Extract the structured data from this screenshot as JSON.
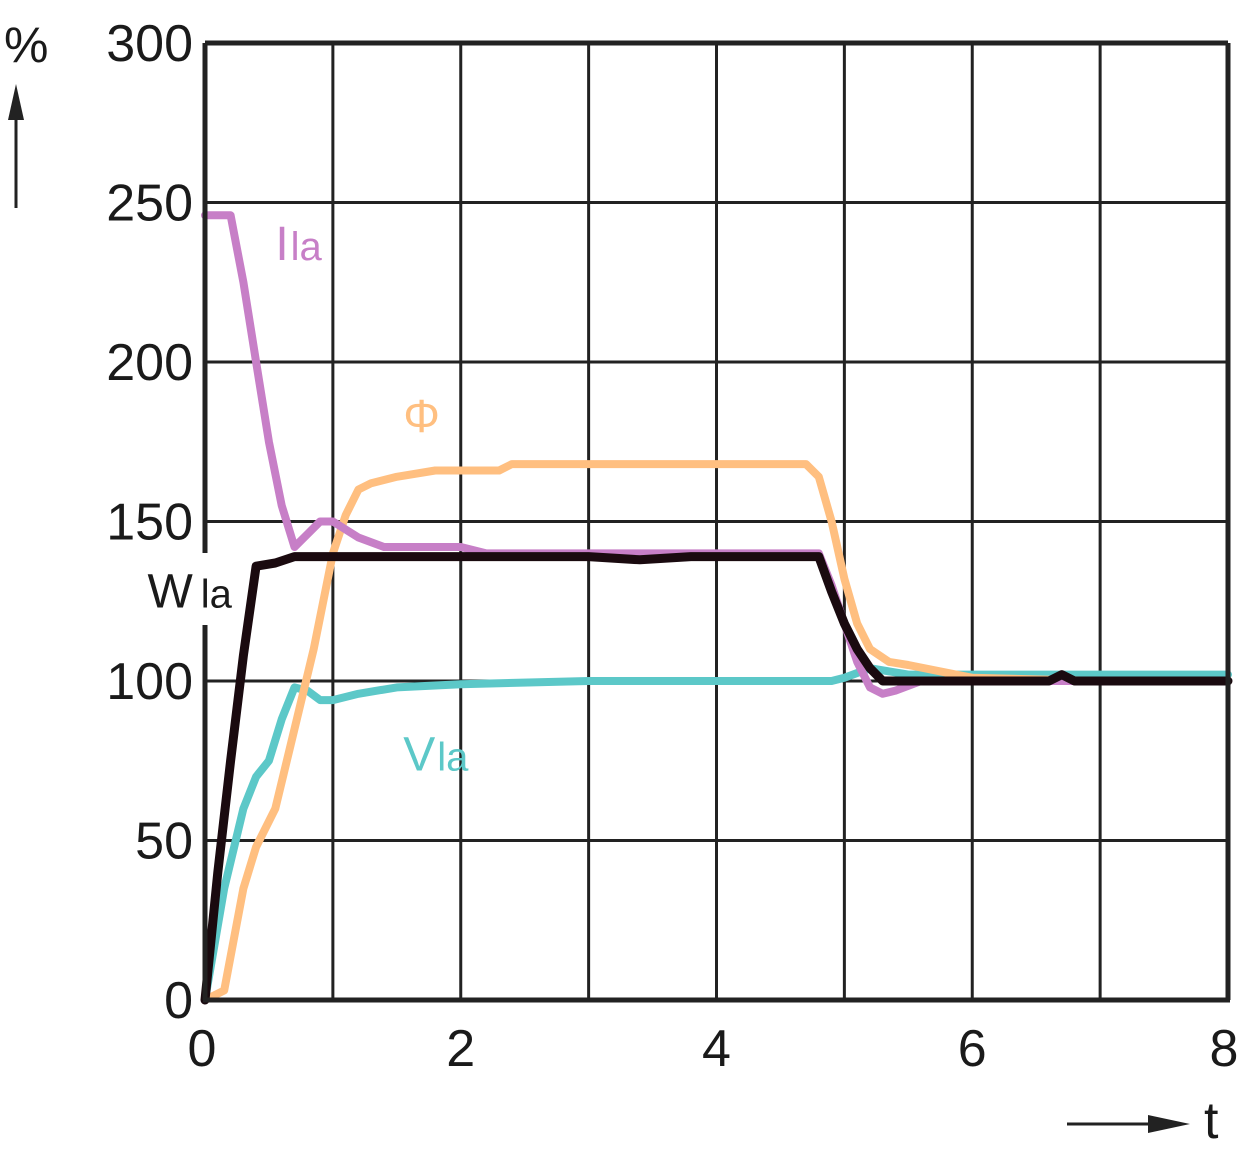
{
  "chart_data": {
    "type": "line",
    "title": "",
    "xlabel": "t",
    "ylabel": "%",
    "xlim": [
      0,
      8
    ],
    "ylim": [
      0,
      300
    ],
    "x_ticks": [
      0,
      2,
      4,
      6,
      8
    ],
    "x_tick_labels": [
      "0",
      "2",
      "4",
      "6",
      "8"
    ],
    "y_ticks": [
      0,
      50,
      100,
      150,
      200,
      250,
      300
    ],
    "y_tick_labels": [
      "0",
      "50",
      "100",
      "150",
      "200",
      "250",
      "300"
    ],
    "grid": true,
    "grid_x_step": 1,
    "grid_y_step": 50,
    "legend": "inline labels",
    "series": [
      {
        "name": "Ila",
        "label_main": "I",
        "label_sub": "la",
        "color": "#c77fc7",
        "x": [
          0,
          0.2,
          0.3,
          0.4,
          0.5,
          0.6,
          0.7,
          0.8,
          0.9,
          1.0,
          1.2,
          1.4,
          1.6,
          2.0,
          2.2,
          3.0,
          4.0,
          4.8,
          4.9,
          5.0,
          5.1,
          5.2,
          5.3,
          5.4,
          5.6,
          6.0,
          7.0,
          8.0
        ],
        "values": [
          246,
          246,
          225,
          200,
          175,
          155,
          142,
          146,
          150,
          150,
          145,
          142,
          142,
          142,
          140,
          140,
          140,
          140,
          130,
          118,
          106,
          98,
          96,
          97,
          100,
          100,
          100,
          100
        ]
      },
      {
        "name": "Φ",
        "label_main": "Φ",
        "label_sub": "",
        "color": "#ffbf80",
        "x": [
          0,
          0.15,
          0.3,
          0.4,
          0.55,
          0.7,
          0.85,
          1.0,
          1.1,
          1.2,
          1.3,
          1.5,
          1.8,
          2.0,
          2.3,
          2.4,
          3.0,
          4.0,
          4.7,
          4.8,
          4.9,
          5.0,
          5.1,
          5.2,
          5.35,
          5.5,
          6.0,
          7.0,
          8.0
        ],
        "values": [
          0,
          3,
          35,
          48,
          60,
          85,
          110,
          140,
          152,
          160,
          162,
          164,
          166,
          166,
          166,
          168,
          168,
          168,
          168,
          164,
          150,
          132,
          118,
          110,
          106,
          105,
          101,
          100,
          100
        ]
      },
      {
        "name": "Vla",
        "label_main": "V",
        "label_sub": "la",
        "color": "#5cc8c8",
        "x": [
          0,
          0.15,
          0.3,
          0.4,
          0.5,
          0.6,
          0.7,
          0.8,
          0.9,
          1.0,
          1.2,
          1.5,
          2.0,
          3.0,
          4.0,
          4.9,
          5.0,
          5.2,
          5.5,
          6.0,
          7.0,
          8.0
        ],
        "values": [
          0,
          35,
          60,
          70,
          75,
          88,
          98,
          97,
          94,
          94,
          96,
          98,
          99,
          100,
          100,
          100,
          101,
          104,
          102,
          102,
          102,
          102
        ]
      },
      {
        "name": "Wla",
        "label_main": "W",
        "label_sub": "la",
        "color": "#1a0a0f",
        "x": [
          0,
          0.1,
          0.2,
          0.3,
          0.4,
          0.55,
          0.7,
          1.0,
          2.0,
          2.3,
          2.6,
          3.0,
          3.4,
          3.8,
          4.2,
          4.8,
          4.9,
          5.0,
          5.1,
          5.2,
          5.3,
          5.5,
          6.0,
          6.6,
          6.7,
          6.8,
          7.0,
          8.0
        ],
        "values": [
          0,
          40,
          75,
          108,
          136,
          137,
          139,
          139,
          139,
          139,
          139,
          139,
          138,
          139,
          139,
          139,
          128,
          118,
          110,
          104,
          100,
          100,
          100,
          100,
          102,
          100,
          100,
          100
        ]
      }
    ],
    "annotations": [
      {
        "text": "Ila",
        "series": "Ila",
        "x": 0.55,
        "y": 237
      },
      {
        "text": "Φ",
        "series": "Φ",
        "x": 1.55,
        "y": 183
      },
      {
        "text": "Vla",
        "series": "Vla",
        "x": 1.55,
        "y": 77
      },
      {
        "text": "Wla",
        "series": "Wla",
        "x": -0.45,
        "y": 128
      }
    ]
  },
  "axes": {
    "y_unit_label": "%",
    "x_var_label": "t"
  }
}
